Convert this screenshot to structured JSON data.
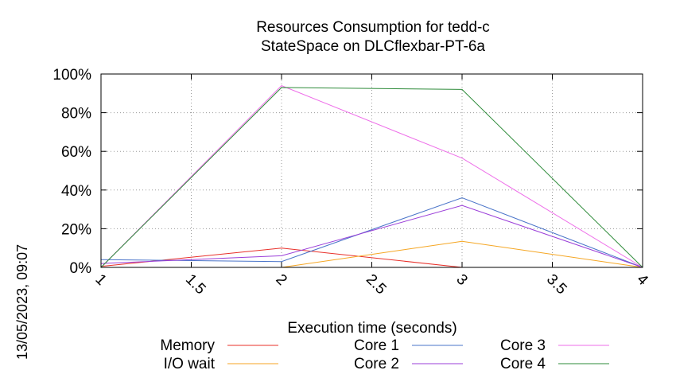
{
  "timestamp": "13/05/2023, 09:07",
  "chart_data": {
    "type": "line",
    "title": [
      "Resources Consumption for tedd-c",
      "StateSpace on DLCflexbar-PT-6a"
    ],
    "xlabel": "Execution time (seconds)",
    "ylabel": "",
    "xlim": [
      1,
      4
    ],
    "ylim": [
      0,
      100
    ],
    "xticks": [
      1,
      1.5,
      2,
      2.5,
      3,
      3.5,
      4
    ],
    "xtick_labels": [
      "1",
      "1.5",
      "2",
      "2.5",
      "3",
      "3.5",
      "4"
    ],
    "yticks": [
      0,
      20,
      40,
      60,
      80,
      100
    ],
    "ytick_labels": [
      "0%",
      "20%",
      "40%",
      "60%",
      "80%",
      "100%"
    ],
    "grid": true,
    "legend_position": "bottom",
    "x": [
      1,
      2,
      3,
      4
    ],
    "series": [
      {
        "name": "Memory",
        "color": "#e8302a",
        "values": [
          0.5,
          10,
          0,
          0
        ]
      },
      {
        "name": "I/O wait",
        "color": "#f5a623",
        "values": [
          0,
          0,
          13.5,
          0
        ]
      },
      {
        "name": "Core 1",
        "color": "#4a74c9",
        "values": [
          4,
          3,
          36,
          0
        ]
      },
      {
        "name": "Core 2",
        "color": "#9b3fd9",
        "values": [
          2,
          6,
          32,
          0
        ]
      },
      {
        "name": "Core 3",
        "color": "#ee6ee9",
        "values": [
          0,
          94,
          56.5,
          0
        ]
      },
      {
        "name": "Core 4",
        "color": "#2e8b3a",
        "values": [
          0,
          93,
          92,
          0
        ]
      }
    ]
  }
}
